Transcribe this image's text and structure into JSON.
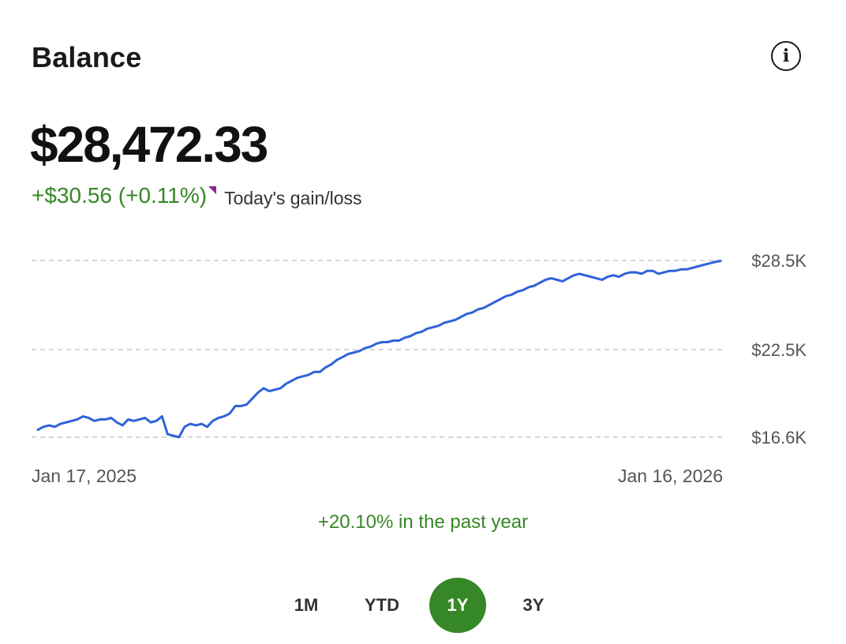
{
  "header": {
    "title": "Balance",
    "info_icon": "info-icon"
  },
  "balance": {
    "amount": "$28,472.33",
    "gain": "+$30.56 (+0.11%)",
    "gain_label": "Today's gain/loss"
  },
  "colors": {
    "gain": "#368727",
    "line": "#2f62d8",
    "flag": "#8a2a91",
    "active_tab": "#368727"
  },
  "period_summary": "+20.10% in the past year",
  "range_tabs": [
    {
      "label": "1M",
      "active": false
    },
    {
      "label": "YTD",
      "active": false
    },
    {
      "label": "1Y",
      "active": true
    },
    {
      "label": "3Y",
      "active": false
    }
  ],
  "chart_data": {
    "type": "line",
    "title": "",
    "xlabel": "",
    "ylabel": "",
    "x_start_label": "Jan 17, 2025",
    "x_end_label": "Jan 16, 2026",
    "ylim": [
      16600,
      28500
    ],
    "yticks": [
      {
        "value": 28500,
        "label": "$28.5K"
      },
      {
        "value": 22500,
        "label": "$22.5K"
      },
      {
        "value": 16600,
        "label": "$16.6K"
      }
    ],
    "grid": true,
    "series": [
      {
        "values": [
          17100,
          17300,
          17400,
          17300,
          17500,
          17600,
          17700,
          17800,
          18000,
          17900,
          17700,
          17800,
          17800,
          17900,
          17600,
          17400,
          17800,
          17700,
          17800,
          17900,
          17600,
          17700,
          18000,
          16800,
          16700,
          16600,
          17300,
          17500,
          17400,
          17500,
          17300,
          17700,
          17900,
          18000,
          18200,
          18700,
          18700,
          18800,
          19200,
          19600,
          19900,
          19700,
          19800,
          19900,
          20200,
          20400,
          20600,
          20700,
          20800,
          21000,
          21000,
          21300,
          21500,
          21800,
          22000,
          22200,
          22300,
          22400,
          22600,
          22700,
          22900,
          23000,
          23000,
          23100,
          23100,
          23300,
          23400,
          23600,
          23700,
          23900,
          24000,
          24100,
          24300,
          24400,
          24500,
          24700,
          24900,
          25000,
          25200,
          25300,
          25500,
          25700,
          25900,
          26100,
          26200,
          26400,
          26500,
          26700,
          26800,
          27000,
          27200,
          27300,
          27200,
          27100,
          27300,
          27500,
          27600,
          27500,
          27400,
          27300,
          27200,
          27400,
          27500,
          27400,
          27600,
          27700,
          27700,
          27600,
          27800,
          27800,
          27600,
          27700,
          27800,
          27800,
          27900,
          27900,
          28000,
          28100,
          28200,
          28300,
          28400,
          28470
        ]
      }
    ]
  }
}
